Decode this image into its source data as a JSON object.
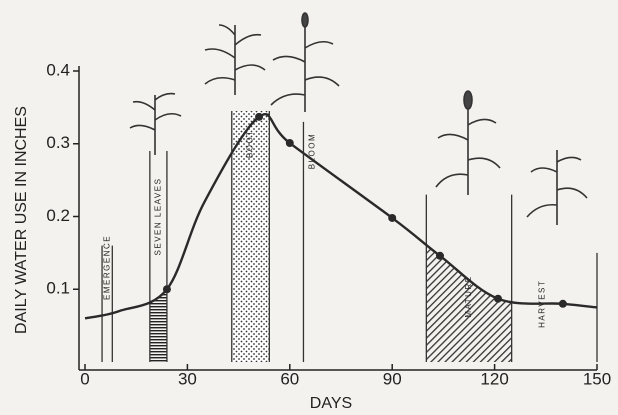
{
  "chart_data": {
    "type": "line",
    "x_label": "DAYS",
    "y_label": "DAILY WATER USE IN INCHES",
    "xlim": [
      0,
      150
    ],
    "xticks": [
      0,
      30,
      60,
      90,
      120,
      150
    ],
    "ylim": [
      0,
      0.4
    ],
    "yticks": [
      0.1,
      0.2,
      0.3,
      0.4
    ],
    "series": [
      {
        "color": "#2a2a2a",
        "x": [
          0,
          10,
          24,
          35,
          51,
          60,
          90,
          104,
          121,
          140,
          150
        ],
        "values": [
          0.06,
          0.07,
          0.1,
          0.22,
          0.337,
          0.301,
          0.198,
          0.146,
          0.087,
          0.08,
          0.075
        ]
      }
    ],
    "stages": [
      {
        "label": "EMERGENCE",
        "x": [
          5,
          8
        ],
        "top": 0.16,
        "fill": null,
        "fill_under_curve": false
      },
      {
        "label": "SEVEN LEAVES",
        "x": [
          19,
          24
        ],
        "top": 0.29,
        "fill": "horizontal",
        "fill_under_curve": true
      },
      {
        "label": "BOOT",
        "x": [
          43,
          54
        ],
        "top": 0.345,
        "fill": "dots",
        "fill_under_curve": false
      },
      {
        "label": "BLOOM",
        "x": [
          64,
          64
        ],
        "top": 0.33,
        "fill": null,
        "fill_under_curve": false
      },
      {
        "label": "MATURE",
        "x": [
          100,
          125
        ],
        "top": 0.23,
        "fill": "diagonal",
        "fill_under_curve": true
      },
      {
        "label": "HARVEST",
        "x": [
          150,
          150
        ],
        "top": 0.15,
        "fill": null,
        "fill_under_curve": false
      }
    ]
  }
}
